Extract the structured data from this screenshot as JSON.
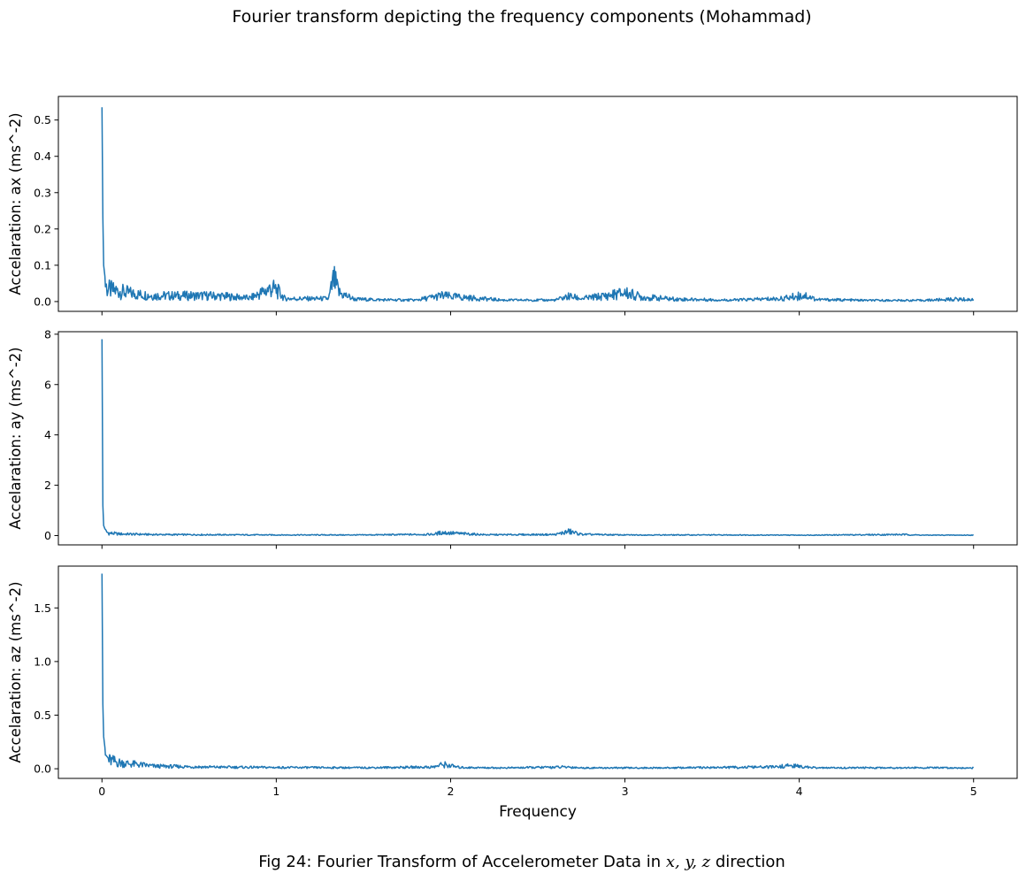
{
  "figure": {
    "suptitle": "Fourier transform depicting the frequency components (Mohammad)",
    "caption_prefix": "Fig 24: Fourier Transform of Accelerometer Data in ",
    "caption_math": "x, y, z",
    "caption_suffix": " direction",
    "line_color": "#1f77b4"
  },
  "chart_data": [
    {
      "type": "line",
      "ylabel": "Accelaration: ax (ms^-2)",
      "xlabel": "",
      "xlim": [
        -0.25,
        5.25
      ],
      "ylim": [
        -0.027,
        0.565
      ],
      "xticks": [
        0,
        1,
        2,
        3,
        4,
        5
      ],
      "xtick_labels": [],
      "yticks": [
        0.0,
        0.1,
        0.2,
        0.3,
        0.4,
        0.5
      ],
      "ytick_labels": [
        "0.0",
        "0.1",
        "0.2",
        "0.3",
        "0.4",
        "0.5"
      ],
      "series": [
        {
          "x": [
            0,
            0.005,
            0.01,
            0.02,
            0.03,
            0.05,
            0.1,
            0.2,
            0.3,
            0.45,
            0.6,
            0.7,
            0.85,
            0.97,
            1.0,
            1.05,
            1.2,
            1.3,
            1.33,
            1.36,
            1.45,
            1.6,
            1.8,
            1.95,
            2.05,
            2.3,
            2.6,
            2.68,
            2.75,
            2.9,
            3.0,
            3.1,
            3.3,
            3.6,
            3.9,
            4.03,
            4.1,
            4.4,
            4.7,
            4.9,
            5.0
          ],
          "y": [
            0.535,
            0.23,
            0.1,
            0.055,
            0.045,
            0.04,
            0.035,
            0.025,
            0.02,
            0.02,
            0.02,
            0.018,
            0.012,
            0.045,
            0.04,
            0.01,
            0.01,
            0.01,
            0.075,
            0.03,
            0.008,
            0.006,
            0.005,
            0.02,
            0.015,
            0.005,
            0.005,
            0.018,
            0.01,
            0.02,
            0.03,
            0.015,
            0.008,
            0.005,
            0.01,
            0.022,
            0.007,
            0.004,
            0.004,
            0.008,
            0.006
          ]
        }
      ]
    },
    {
      "type": "line",
      "ylabel": "Accelaration: ay (ms^-2)",
      "xlabel": "",
      "xlim": [
        -0.25,
        5.25
      ],
      "ylim": [
        -0.37,
        8.1
      ],
      "xticks": [
        0,
        1,
        2,
        3,
        4,
        5
      ],
      "xtick_labels": [],
      "yticks": [
        0,
        2,
        4,
        6,
        8
      ],
      "ytick_labels": [
        "0",
        "2",
        "4",
        "6",
        "8"
      ],
      "series": [
        {
          "x": [
            0,
            0.005,
            0.01,
            0.02,
            0.04,
            0.1,
            0.3,
            0.6,
            1.0,
            1.5,
            1.9,
            1.95,
            2.05,
            2.2,
            2.6,
            2.68,
            2.75,
            3.0,
            3.5,
            4.0,
            4.6,
            4.7,
            5.0
          ],
          "y": [
            7.8,
            1.2,
            0.4,
            0.2,
            0.12,
            0.08,
            0.05,
            0.04,
            0.03,
            0.03,
            0.06,
            0.15,
            0.1,
            0.04,
            0.05,
            0.2,
            0.06,
            0.03,
            0.03,
            0.02,
            0.05,
            0.02,
            0.02
          ]
        }
      ]
    },
    {
      "type": "line",
      "ylabel": "Accelaration: az (ms^-2)",
      "xlabel": "Frequency",
      "xlim": [
        -0.25,
        5.25
      ],
      "ylim": [
        -0.09,
        1.89
      ],
      "xticks": [
        0,
        1,
        2,
        3,
        4,
        5
      ],
      "xtick_labels": [
        "0",
        "1",
        "2",
        "3",
        "4",
        "5"
      ],
      "yticks": [
        0.0,
        0.5,
        1.0,
        1.5
      ],
      "ytick_labels": [
        "0.0",
        "0.5",
        "1.0",
        "1.5"
      ],
      "series": [
        {
          "x": [
            0,
            0.005,
            0.01,
            0.02,
            0.04,
            0.1,
            0.3,
            0.6,
            1.0,
            1.5,
            1.9,
            1.96,
            2.05,
            2.3,
            2.68,
            2.75,
            3.2,
            3.85,
            3.95,
            4.1,
            4.6,
            5.0
          ],
          "y": [
            1.82,
            0.6,
            0.3,
            0.15,
            0.1,
            0.07,
            0.03,
            0.02,
            0.015,
            0.012,
            0.02,
            0.05,
            0.015,
            0.01,
            0.02,
            0.01,
            0.01,
            0.02,
            0.035,
            0.01,
            0.012,
            0.01
          ]
        }
      ]
    }
  ]
}
